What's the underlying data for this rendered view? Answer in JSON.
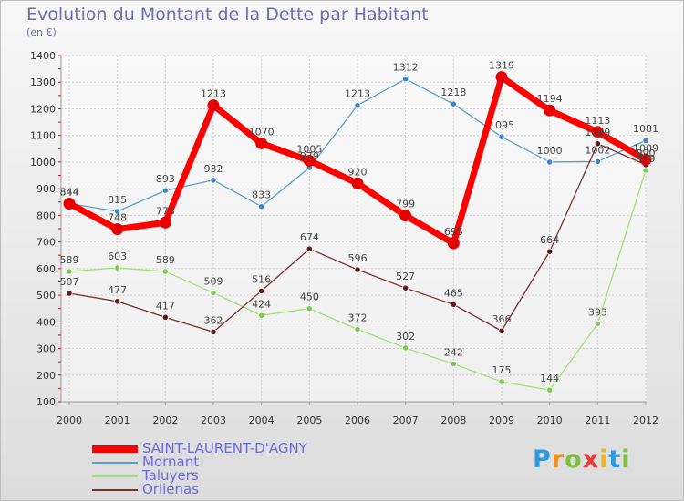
{
  "title": "Evolution du Montant de la Dette par Habitant",
  "subtitle": "(en €)",
  "logo": {
    "letters": [
      "P",
      "r",
      "o",
      "x",
      "i",
      "t",
      "i"
    ],
    "colors": [
      "#2b9adf",
      "#f28e1c",
      "#7fbf3a",
      "#e53935",
      "#f2b31c",
      "#2b9adf",
      "#7fbf3a"
    ]
  },
  "chart_data": {
    "type": "line",
    "title": "Evolution du Montant de la Dette par Habitant",
    "subtitle": "(en €)",
    "x": [
      "2000",
      "2001",
      "2002",
      "2003",
      "2004",
      "2005",
      "2006",
      "2007",
      "2008",
      "2009",
      "2010",
      "2011",
      "2012"
    ],
    "ylim": [
      100,
      1400
    ],
    "yticks": [
      100,
      200,
      300,
      400,
      500,
      600,
      700,
      800,
      900,
      1000,
      1100,
      1200,
      1300,
      1400
    ],
    "grid": true,
    "legend_position": "bottom-left",
    "series": [
      {
        "name": "SAINT-LAURENT-D'AGNY",
        "color": "#ff0000",
        "point_color": "#e60000",
        "values": [
          844,
          748,
          773,
          1213,
          1070,
          1005,
          920,
          799,
          695,
          1319,
          1194,
          1113,
          1009
        ]
      },
      {
        "name": "Mornant",
        "color": "#5a9ecf",
        "point_color": "#3d85c6",
        "values": [
          844,
          815,
          893,
          932,
          833,
          979,
          1213,
          1312,
          1218,
          1095,
          1000,
          1002,
          1081
        ]
      },
      {
        "name": "Taluyers",
        "color": "#9fe27a",
        "point_color": "#7ccc52",
        "values": [
          589,
          603,
          589,
          509,
          424,
          450,
          372,
          302,
          242,
          175,
          144,
          393,
          969
        ]
      },
      {
        "name": "Orliénas",
        "color": "#7a3030",
        "point_color": "#5c1a1a",
        "values": [
          507,
          477,
          417,
          362,
          516,
          674,
          596,
          527,
          465,
          366,
          664,
          1069,
          990
        ]
      }
    ]
  }
}
